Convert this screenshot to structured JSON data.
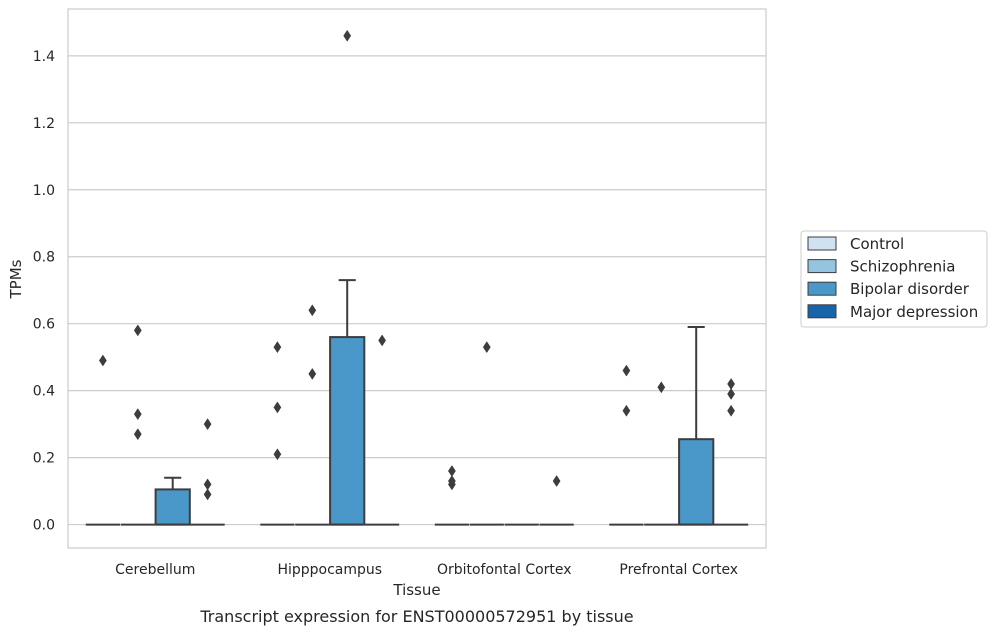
{
  "caption": "Transcript expression for ENST00000572951 by tissue",
  "chart_data": {
    "type": "box",
    "xlabel": "Tissue",
    "ylabel": "TPMs",
    "ylim": [
      -0.07,
      1.54
    ],
    "yticks": [
      0.0,
      0.2,
      0.4,
      0.6,
      0.8,
      1.0,
      1.2,
      1.4
    ],
    "ytick_labels": [
      "0.0",
      "0.2",
      "0.4",
      "0.6",
      "0.8",
      "1.0",
      "1.2",
      "1.4"
    ],
    "grid": "horizontal",
    "legend_placement": "right",
    "categories": [
      "Cerebellum",
      "Hipppocampus",
      "Orbitofontal Cortex",
      "Prefrontal Cortex"
    ],
    "series": [
      {
        "name": "Control",
        "color": "#d0e1f2",
        "boxes": [
          {
            "q1": 0,
            "median": 0,
            "q3": 0,
            "whisker_low": 0,
            "whisker_high": 0,
            "outliers": [
              0.49
            ]
          },
          {
            "q1": 0,
            "median": 0,
            "q3": 0,
            "whisker_low": 0,
            "whisker_high": 0,
            "outliers": [
              0.21,
              0.35,
              0.53
            ]
          },
          {
            "q1": 0,
            "median": 0,
            "q3": 0,
            "whisker_low": 0,
            "whisker_high": 0,
            "outliers": [
              0.12,
              0.13,
              0.16
            ]
          },
          {
            "q1": 0,
            "median": 0,
            "q3": 0,
            "whisker_low": 0,
            "whisker_high": 0,
            "outliers": [
              0.34,
              0.46
            ]
          }
        ]
      },
      {
        "name": "Schizophrenia",
        "color": "#94c4df",
        "boxes": [
          {
            "q1": 0,
            "median": 0,
            "q3": 0,
            "whisker_low": 0,
            "whisker_high": 0,
            "outliers": [
              0.27,
              0.33,
              0.58
            ]
          },
          {
            "q1": 0,
            "median": 0,
            "q3": 0,
            "whisker_low": 0,
            "whisker_high": 0,
            "outliers": [
              0.45,
              0.64
            ]
          },
          {
            "q1": 0,
            "median": 0,
            "q3": 0,
            "whisker_low": 0,
            "whisker_high": 0,
            "outliers": [
              0.53
            ]
          },
          {
            "q1": 0,
            "median": 0,
            "q3": 0,
            "whisker_low": 0,
            "whisker_high": 0,
            "outliers": [
              0.41
            ]
          }
        ]
      },
      {
        "name": "Bipolar disorder",
        "color": "#4a98c9",
        "boxes": [
          {
            "q1": 0,
            "median": 0,
            "q3": 0.105,
            "whisker_low": 0,
            "whisker_high": 0.14,
            "outliers": []
          },
          {
            "q1": 0,
            "median": 0,
            "q3": 0.56,
            "whisker_low": 0,
            "whisker_high": 0.73,
            "outliers": [
              1.46
            ]
          },
          {
            "q1": 0,
            "median": 0,
            "q3": 0,
            "whisker_low": 0,
            "whisker_high": 0,
            "outliers": []
          },
          {
            "q1": 0,
            "median": 0,
            "q3": 0.255,
            "whisker_low": 0,
            "whisker_high": 0.59,
            "outliers": []
          }
        ]
      },
      {
        "name": "Major depression",
        "color": "#1764ab",
        "boxes": [
          {
            "q1": 0,
            "median": 0,
            "q3": 0,
            "whisker_low": 0,
            "whisker_high": 0,
            "outliers": [
              0.09,
              0.12,
              0.3
            ]
          },
          {
            "q1": 0,
            "median": 0,
            "q3": 0,
            "whisker_low": 0,
            "whisker_high": 0,
            "outliers": [
              0.55
            ]
          },
          {
            "q1": 0,
            "median": 0,
            "q3": 0,
            "whisker_low": 0,
            "whisker_high": 0,
            "outliers": [
              0.13
            ]
          },
          {
            "q1": 0,
            "median": 0,
            "q3": 0,
            "whisker_low": 0,
            "whisker_high": 0,
            "outliers": [
              0.34,
              0.39,
              0.42
            ]
          }
        ]
      }
    ]
  }
}
